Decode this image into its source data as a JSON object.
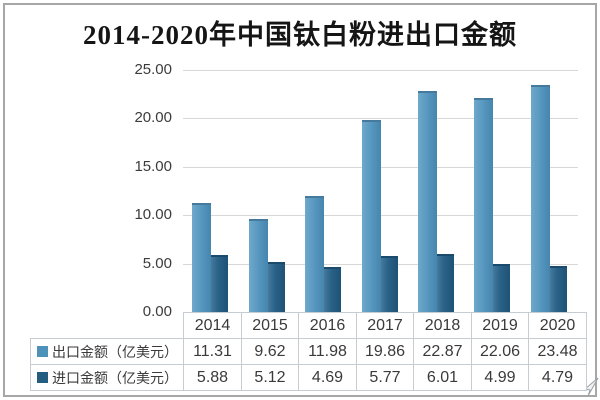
{
  "chart_data": {
    "type": "bar",
    "title": "2014-2020年中国钛白粉进出口金额",
    "categories": [
      "2014",
      "2015",
      "2016",
      "2017",
      "2018",
      "2019",
      "2020"
    ],
    "series": [
      {
        "name": "出口金额（亿美元）",
        "values": [
          11.31,
          9.62,
          11.98,
          19.86,
          22.87,
          22.06,
          23.48
        ],
        "color": "#4d92b9"
      },
      {
        "name": "进口金额（亿美元）",
        "values": [
          5.88,
          5.12,
          4.69,
          5.77,
          6.01,
          4.99,
          4.79
        ],
        "color": "#235d7f"
      }
    ],
    "xlabel": "",
    "ylabel": "",
    "ylim": [
      0,
      25
    ],
    "ytick_values": [
      25,
      20,
      15,
      10,
      5,
      0
    ],
    "ytick_labels": [
      "25.00",
      "20.00",
      "15.00",
      "10.00",
      "5.00",
      "0.00"
    ],
    "grid": "horizontal",
    "legend_position": "table-rows-left",
    "data_table_shown": true,
    "gridline_color": "#d8d8d8",
    "table_border_color": "#c6ccd1",
    "frame_border_color": "#a7a7a7"
  }
}
